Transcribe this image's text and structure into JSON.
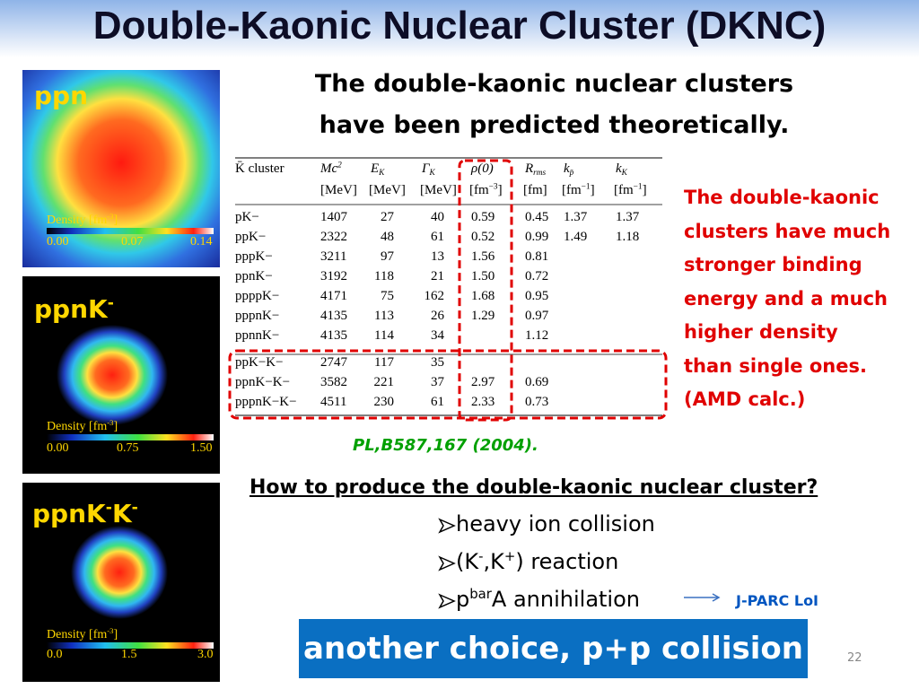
{
  "title": "Double-Kaonic Nuclear Cluster (DKNC)",
  "panels": [
    {
      "label": [
        "ppn"
      ],
      "density_label": [
        "Density [fm",
        {
          "sup": "-3"
        },
        "]"
      ],
      "scale": [
        "0.00",
        "0.07",
        "0.14"
      ]
    },
    {
      "label": [
        "ppnK",
        {
          "sup": "-"
        }
      ],
      "density_label": [
        "Density [fm",
        {
          "sup": "-3"
        },
        "]"
      ],
      "scale": [
        "0.00",
        "0.75",
        "1.50"
      ]
    },
    {
      "label": [
        "ppnK",
        {
          "sup": "-"
        },
        "K",
        {
          "sup": "-"
        }
      ],
      "density_label": [
        "Density [fm",
        {
          "sup": "-3"
        },
        "]"
      ],
      "scale": [
        "0.0",
        "1.5",
        "3.0"
      ]
    }
  ],
  "subtitle": [
    "The double-kaonic nuclear clusters",
    "have been predicted theoretically."
  ],
  "table": {
    "header": [
      [
        "K̄ cluster"
      ],
      [
        "Mc",
        {
          "sup": "2"
        }
      ],
      [
        "E",
        {
          "sub": "K"
        }
      ],
      [
        "Γ",
        {
          "sub": "K"
        }
      ],
      [
        "ρ(0)"
      ],
      [
        "R",
        {
          "sub": "rms"
        }
      ],
      [
        "k",
        {
          "sub": "p̄"
        }
      ],
      [
        "k",
        {
          "sub": "K"
        }
      ]
    ],
    "units": [
      null,
      [
        "[MeV]"
      ],
      [
        "[MeV]"
      ],
      [
        "[MeV]"
      ],
      [
        "[fm",
        {
          "sup": "−3"
        },
        "]"
      ],
      [
        "[fm]"
      ],
      [
        "[fm",
        {
          "sup": "−1"
        },
        "]"
      ],
      [
        "[fm",
        {
          "sup": "−1"
        },
        "]"
      ]
    ],
    "rows": [
      [
        "pK−",
        "1407",
        "27",
        "40",
        "0.59",
        "0.45",
        "1.37",
        "1.37"
      ],
      [
        "ppK−",
        "2322",
        "48",
        "61",
        "0.52",
        "0.99",
        "1.49",
        "1.18"
      ],
      [
        "pppK−",
        "3211",
        "97",
        "13",
        "1.56",
        "0.81",
        null,
        null
      ],
      [
        "ppnK−",
        "3192",
        "118",
        "21",
        "1.50",
        "0.72",
        null,
        null
      ],
      [
        "ppppK−",
        "4171",
        "75",
        "162",
        "1.68",
        "0.95",
        null,
        null
      ],
      [
        "pppnK−",
        "4135",
        "113",
        "26",
        "1.29",
        "0.97",
        null,
        null
      ],
      [
        "ppnnK−",
        "4135",
        "114",
        "34",
        null,
        "1.12",
        null,
        null
      ],
      [
        "ppK−K−",
        "2747",
        "117",
        "35",
        null,
        null,
        null,
        null
      ],
      [
        "ppnK−K−",
        "3582",
        "221",
        "37",
        "2.97",
        "0.69",
        null,
        null
      ],
      [
        "pppnK−K−",
        "4511",
        "230",
        "61",
        "2.33",
        "0.73",
        null,
        null
      ]
    ]
  },
  "reference": "PL,B587,167 (2004).",
  "note": [
    "The double-kaonic",
    "clusters have much",
    "stronger binding",
    "energy and a much",
    "higher density",
    "than single ones.",
    "(AMD calc.)"
  ],
  "question": "How to produce the double-kaonic nuclear cluster?",
  "bullets": [
    [
      "heavy ion collision"
    ],
    [
      "(K",
      {
        "sup": "-"
      },
      ",K",
      {
        "sup": "+"
      },
      ") reaction"
    ],
    [
      "p",
      {
        "sup": "bar"
      },
      "A annihilation"
    ]
  ],
  "link_label": "J-PARC LoI",
  "highlight": "another choice, p+p collision",
  "page_number": "22"
}
